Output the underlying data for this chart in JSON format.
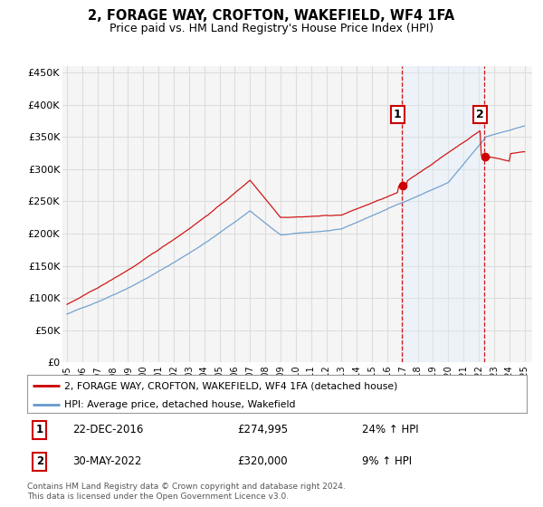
{
  "title": "2, FORAGE WAY, CROFTON, WAKEFIELD, WF4 1FA",
  "subtitle": "Price paid vs. HM Land Registry's House Price Index (HPI)",
  "ylim": [
    0,
    460000
  ],
  "yticks": [
    0,
    50000,
    100000,
    150000,
    200000,
    250000,
    300000,
    350000,
    400000,
    450000
  ],
  "ytick_labels": [
    "£0",
    "£50K",
    "£100K",
    "£150K",
    "£200K",
    "£250K",
    "£300K",
    "£350K",
    "£400K",
    "£450K"
  ],
  "background_color": "#ffffff",
  "plot_bg_color": "#f5f5f5",
  "grid_color": "#dddddd",
  "sale1_price": 274995,
  "sale2_price": 320000,
  "legend_line1": "2, FORAGE WAY, CROFTON, WAKEFIELD, WF4 1FA (detached house)",
  "legend_line2": "HPI: Average price, detached house, Wakefield",
  "footer": "Contains HM Land Registry data © Crown copyright and database right 2024.\nThis data is licensed under the Open Government Licence v3.0.",
  "hpi_color": "#6699cc",
  "price_color": "#cc0000",
  "vline_color": "#cc0000",
  "shade_color": "#ddeeff",
  "box1_num": "1",
  "box2_num": "2",
  "ann1_date": "22-DEC-2016",
  "ann1_price": "£274,995",
  "ann1_pct": "24% ↑ HPI",
  "ann2_date": "30-MAY-2022",
  "ann2_price": "£320,000",
  "ann2_pct": "9% ↑ HPI"
}
